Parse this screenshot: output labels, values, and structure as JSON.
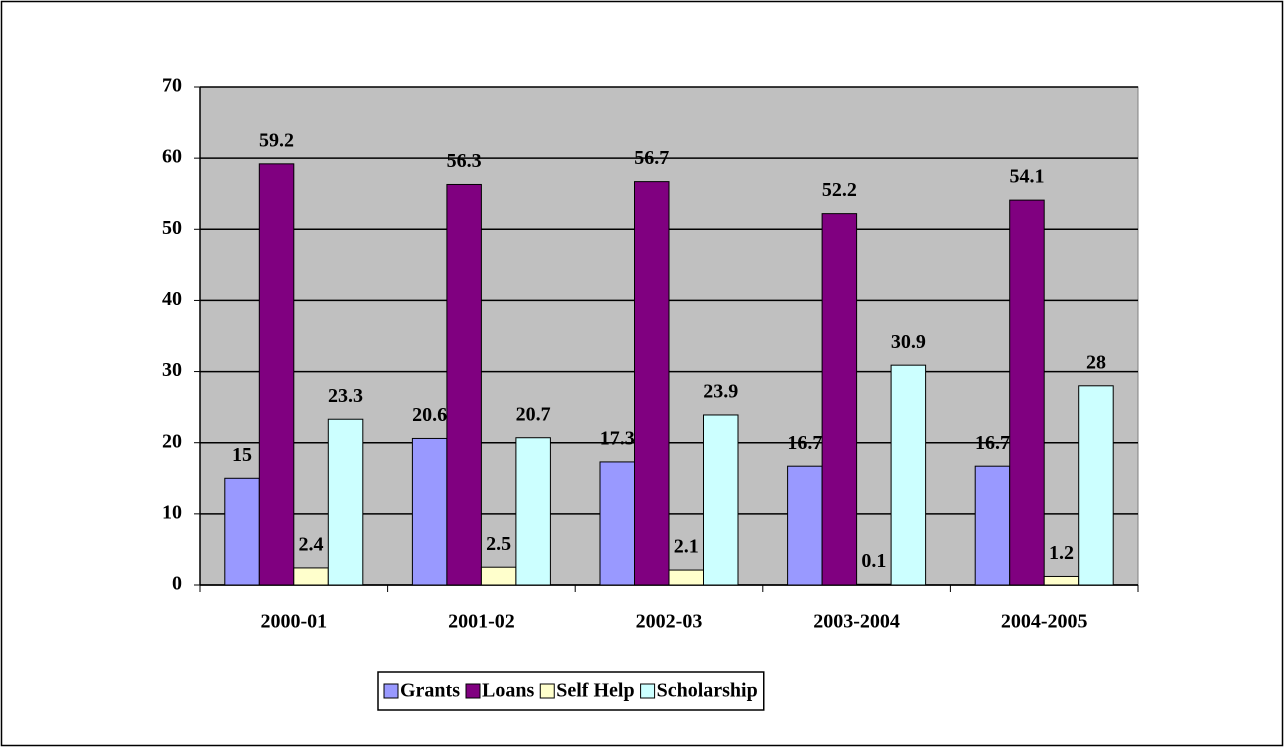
{
  "chart_data": {
    "type": "bar",
    "categories": [
      "2000-01",
      "2001-02",
      "2002-03",
      "2003-2004",
      "2004-2005"
    ],
    "series": [
      {
        "name": "Grants",
        "color": "#9999ff",
        "values": [
          15,
          20.6,
          17.3,
          16.7,
          16.7
        ]
      },
      {
        "name": "Loans",
        "color": "#800080",
        "values": [
          59.2,
          56.3,
          56.7,
          52.2,
          54.1
        ]
      },
      {
        "name": "Self Help",
        "color": "#ffffcc",
        "values": [
          2.4,
          2.5,
          2.1,
          0.1,
          1.2
        ]
      },
      {
        "name": "Scholarship",
        "color": "#ccffff",
        "values": [
          23.3,
          20.7,
          23.9,
          30.9,
          28
        ]
      }
    ],
    "ylim": [
      0,
      70
    ],
    "yticks": [
      0,
      10,
      20,
      30,
      40,
      50,
      60,
      70
    ],
    "grid": true,
    "legend": "bottom",
    "plot_background": "#c0c0c0"
  }
}
